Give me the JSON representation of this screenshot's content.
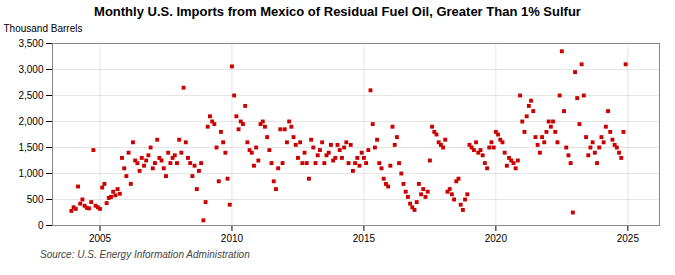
{
  "chart_data": {
    "type": "scatter",
    "title": "Monthly U.S. Imports from Mexico of Residual Fuel Oil, Greater Than 1% Sulfur",
    "ylabel": "Thousand Barrels",
    "annotations": [
      "Source: U.S. Energy Information Administration"
    ],
    "color": "#cc0000",
    "marker": "square",
    "grid": true,
    "xlim": [
      2003.2,
      2026.2
    ],
    "ylim": [
      0,
      3500
    ],
    "xticks": [
      2005,
      2010,
      2015,
      2020,
      2025
    ],
    "yticks": [
      0,
      500,
      {
        "value": 1000,
        "label": "1,000"
      },
      {
        "value": 1500,
        "label": "1,500"
      },
      {
        "value": 2000,
        "label": "2,000"
      },
      {
        "value": 2500,
        "label": "2,500"
      },
      {
        "value": 3000,
        "label": "3,000"
      },
      {
        "value": 3500,
        "label": "3,500"
      }
    ],
    "x": [
      2003.917,
      2004.0,
      2004.083,
      2004.167,
      2004.25,
      2004.333,
      2004.417,
      2004.5,
      2004.583,
      2004.667,
      2004.75,
      2004.833,
      2004.917,
      2005.0,
      2005.083,
      2005.167,
      2005.25,
      2005.333,
      2005.417,
      2005.5,
      2005.583,
      2005.667,
      2005.75,
      2005.833,
      2005.917,
      2006.0,
      2006.083,
      2006.167,
      2006.25,
      2006.333,
      2006.417,
      2006.5,
      2006.583,
      2006.667,
      2006.75,
      2006.833,
      2006.917,
      2007.0,
      2007.083,
      2007.167,
      2007.25,
      2007.333,
      2007.417,
      2007.5,
      2007.583,
      2007.667,
      2007.75,
      2007.833,
      2007.917,
      2008.0,
      2008.083,
      2008.167,
      2008.25,
      2008.333,
      2008.417,
      2008.5,
      2008.583,
      2008.667,
      2008.75,
      2008.833,
      2008.917,
      2009.0,
      2009.083,
      2009.167,
      2009.25,
      2009.333,
      2009.417,
      2009.5,
      2009.583,
      2009.667,
      2009.75,
      2009.833,
      2009.917,
      2010.0,
      2010.083,
      2010.167,
      2010.25,
      2010.333,
      2010.417,
      2010.5,
      2010.583,
      2010.667,
      2010.75,
      2010.833,
      2010.917,
      2011.0,
      2011.083,
      2011.167,
      2011.25,
      2011.333,
      2011.417,
      2011.5,
      2011.583,
      2011.667,
      2011.75,
      2011.833,
      2011.917,
      2012.0,
      2012.083,
      2012.167,
      2012.25,
      2012.333,
      2012.417,
      2012.5,
      2012.583,
      2012.667,
      2012.75,
      2012.833,
      2012.917,
      2013.0,
      2013.083,
      2013.167,
      2013.25,
      2013.333,
      2013.417,
      2013.5,
      2013.583,
      2013.667,
      2013.75,
      2013.833,
      2013.917,
      2014.0,
      2014.083,
      2014.167,
      2014.25,
      2014.333,
      2014.417,
      2014.5,
      2014.583,
      2014.667,
      2014.75,
      2014.833,
      2014.917,
      2015.0,
      2015.083,
      2015.167,
      2015.25,
      2015.333,
      2015.417,
      2015.5,
      2015.583,
      2015.667,
      2015.75,
      2015.833,
      2015.917,
      2016.0,
      2016.083,
      2016.167,
      2016.25,
      2016.333,
      2016.417,
      2016.5,
      2016.583,
      2016.667,
      2016.75,
      2016.833,
      2016.917,
      2017.0,
      2017.083,
      2017.167,
      2017.25,
      2017.333,
      2017.417,
      2017.5,
      2017.583,
      2017.667,
      2017.75,
      2017.833,
      2017.917,
      2018.0,
      2018.083,
      2018.167,
      2018.25,
      2018.333,
      2018.417,
      2018.5,
      2018.583,
      2018.667,
      2018.75,
      2018.833,
      2018.917,
      2019.0,
      2019.083,
      2019.167,
      2019.25,
      2019.333,
      2019.417,
      2019.5,
      2019.583,
      2019.667,
      2019.75,
      2019.833,
      2019.917,
      2020.0,
      2020.083,
      2020.167,
      2020.25,
      2020.333,
      2020.417,
      2020.5,
      2020.583,
      2020.667,
      2020.75,
      2020.833,
      2020.917,
      2021.0,
      2021.083,
      2021.167,
      2021.25,
      2021.333,
      2021.417,
      2021.5,
      2021.583,
      2021.667,
      2021.75,
      2021.833,
      2021.917,
      2022.0,
      2022.083,
      2022.167,
      2022.25,
      2022.333,
      2022.417,
      2022.5,
      2022.583,
      2022.667,
      2022.75,
      2022.833,
      2022.917,
      2023.0,
      2023.083,
      2023.167,
      2023.25,
      2023.333,
      2023.417,
      2023.5,
      2023.583,
      2023.667,
      2023.75,
      2023.833,
      2023.917,
      2024.0,
      2024.083,
      2024.167,
      2024.25,
      2024.333,
      2024.417,
      2024.5,
      2024.583,
      2024.667,
      2024.75,
      2024.833,
      2024.917
    ],
    "values": [
      280,
      350,
      320,
      750,
      420,
      500,
      380,
      340,
      330,
      450,
      1450,
      380,
      350,
      320,
      730,
      800,
      430,
      530,
      550,
      650,
      580,
      700,
      610,
      1300,
      1100,
      950,
      1400,
      800,
      1600,
      1250,
      1200,
      1050,
      1300,
      1150,
      1250,
      1350,
      1500,
      1100,
      1200,
      1650,
      1300,
      1250,
      1100,
      950,
      1400,
      1200,
      1300,
      1350,
      1200,
      1650,
      1400,
      2650,
      1600,
      1300,
      1200,
      950,
      1150,
      700,
      1050,
      1200,
      100,
      450,
      1900,
      2100,
      2000,
      1950,
      1500,
      850,
      1800,
      1600,
      1400,
      900,
      400,
      3060,
      2500,
      2100,
      1850,
      2000,
      1950,
      2300,
      1600,
      1450,
      1400,
      1150,
      1500,
      1250,
      1950,
      2000,
      1900,
      1700,
      1450,
      1200,
      850,
      700,
      1100,
      1850,
      1200,
      1850,
      1600,
      2000,
      1900,
      1700,
      1550,
      1300,
      1600,
      1200,
      1400,
      1200,
      900,
      1650,
      1500,
      1200,
      1350,
      1450,
      1600,
      1200,
      1350,
      1400,
      1550,
      1250,
      1300,
      1550,
      1450,
      1300,
      1500,
      1600,
      1200,
      1550,
      1050,
      1200,
      1300,
      1150,
      1400,
      1300,
      1200,
      1450,
      2600,
      1950,
      1500,
      1650,
      1200,
      1100,
      900,
      800,
      750,
      1150,
      1900,
      1550,
      1700,
      1200,
      1000,
      800,
      650,
      550,
      420,
      350,
      300,
      450,
      800,
      600,
      700,
      550,
      650,
      1250,
      1900,
      1800,
      1750,
      1600,
      1550,
      1500,
      1650,
      650,
      700,
      600,
      500,
      850,
      900,
      400,
      300,
      500,
      600,
      1550,
      1500,
      1450,
      1600,
      1400,
      1450,
      1350,
      1200,
      1100,
      1500,
      1600,
      1500,
      1800,
      1750,
      1650,
      1600,
      1400,
      1150,
      1300,
      1250,
      1200,
      1100,
      1250,
      2500,
      2000,
      1800,
      2100,
      2300,
      2400,
      2200,
      1700,
      1550,
      1400,
      1700,
      1600,
      1800,
      2000,
      1900,
      2000,
      1800,
      1600,
      2500,
      3350,
      2200,
      1500,
      1350,
      1200,
      250,
      2950,
      2450,
      1950,
      3100,
      2500,
      1700,
      1350,
      1500,
      1600,
      1400,
      1200,
      1500,
      1700,
      1600,
      1900,
      2200,
      1800,
      1650,
      1550,
      1500,
      1400,
      1300,
      1800,
      3100
    ]
  }
}
